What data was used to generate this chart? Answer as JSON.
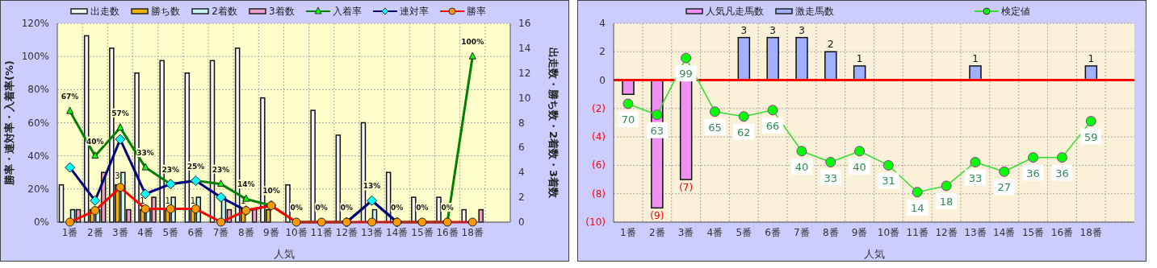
{
  "chart_data": [
    {
      "type": "bar",
      "xlabel": "人気",
      "ylabel": "勝率・連対率・入着率(%)",
      "y2label": "出走数・勝ち数・2着数・3着数",
      "categories": [
        "1番",
        "2番",
        "3番",
        "4番",
        "5番",
        "6番",
        "7番",
        "8番",
        "9番",
        "10番",
        "11番",
        "12番",
        "13番",
        "14番",
        "15番",
        "16番",
        "18番",
        null
      ],
      "ylim": [
        0,
        120
      ],
      "yticks": [
        {
          "value": 0,
          "label": "0%"
        },
        {
          "value": 20,
          "label": "20%"
        },
        {
          "value": 40,
          "label": "40%"
        },
        {
          "value": 60,
          "label": "60%"
        },
        {
          "value": 80,
          "label": "80%"
        },
        {
          "value": 100,
          "label": "100%"
        },
        {
          "value": 120,
          "label": "120%"
        }
      ],
      "y2lim": [
        0,
        16
      ],
      "y2ticks": [
        0,
        2,
        4,
        6,
        8,
        10,
        12,
        14,
        16
      ],
      "grid": true,
      "legend": "top",
      "series": [
        {
          "name": "出走数",
          "axis": "y2",
          "color": "#f4f4f4",
          "values": [
            3,
            15,
            14,
            12,
            13,
            12,
            13,
            14,
            10,
            3,
            9,
            7,
            8,
            4,
            2,
            2,
            1,
            null
          ]
        },
        {
          "name": "勝ち数",
          "axis": "y2",
          "color": "#f0b400",
          "values": [
            0,
            1,
            3,
            1,
            1,
            1,
            0,
            1,
            1,
            0,
            0,
            0,
            0,
            0,
            0,
            0,
            0,
            null
          ],
          "value_labels": [
            null,
            null,
            "3",
            "1",
            "1",
            "1",
            null,
            "1",
            null,
            null,
            null,
            null,
            null,
            null,
            null,
            null,
            null,
            null
          ]
        },
        {
          "name": "2着数",
          "axis": "y2",
          "color": "#c8f4f4",
          "values": [
            1,
            1,
            4,
            1,
            2,
            2,
            2,
            0,
            0,
            0,
            0,
            0,
            1,
            0,
            0,
            0,
            0,
            null
          ]
        },
        {
          "name": "3着数",
          "axis": "y2",
          "color": "#f0a0c8",
          "values": [
            1,
            4,
            1,
            2,
            0,
            0,
            1,
            1,
            0,
            0,
            0,
            0,
            0,
            0,
            0,
            0,
            1,
            null
          ]
        },
        {
          "name": "入着率",
          "type": "line",
          "marker": "triangle",
          "color": "#008000",
          "values": [
            67,
            40,
            57,
            33,
            23,
            25,
            23,
            14,
            10,
            0,
            0,
            0,
            13,
            0,
            0,
            0,
            100,
            null
          ],
          "value_labels": [
            "67%",
            "40%",
            "57%",
            "33%",
            "23%",
            "25%",
            "23%",
            "14%",
            "10%",
            "0%",
            "0%",
            "0%",
            "13%",
            "0%",
            "0%",
            "0%",
            "100%",
            null
          ]
        },
        {
          "name": "連対率",
          "type": "line",
          "marker": "diamond",
          "color": "#000080",
          "values": [
            33,
            13,
            50,
            17,
            23,
            25,
            15,
            7,
            10,
            null,
            null,
            0,
            13,
            0,
            null,
            null,
            null,
            null
          ]
        },
        {
          "name": "勝率",
          "type": "line",
          "marker": "circle",
          "color": "#ff0000",
          "values": [
            0,
            7,
            21,
            8,
            8,
            8,
            0,
            7,
            10,
            0,
            0,
            0,
            0,
            0,
            0,
            0,
            0,
            null
          ]
        }
      ]
    },
    {
      "type": "bar",
      "xlabel": "人気",
      "categories": [
        "1番",
        "2番",
        "3番",
        "4番",
        "5番",
        "6番",
        "7番",
        "8番",
        "9番",
        "10番",
        "11番",
        "12番",
        "13番",
        "14番",
        "15番",
        "16番",
        "18番",
        null
      ],
      "ylim": [
        -10,
        4
      ],
      "yticks": [
        4,
        2,
        0,
        {
          "value": -2,
          "label": "(2)"
        },
        {
          "value": -4,
          "label": "(4)"
        },
        {
          "value": -6,
          "label": "(6)"
        },
        {
          "value": -8,
          "label": "(8)"
        },
        {
          "value": -10,
          "label": "(10)"
        }
      ],
      "y2lim": [
        -5,
        121
      ],
      "grid": true,
      "legend": "top",
      "ref_lines": [
        {
          "axis": "y",
          "value": 0,
          "color": "#ff0000"
        }
      ],
      "series": [
        {
          "name": "人気凡走馬数",
          "color": "#f090f0",
          "values": [
            -1,
            -9,
            -7,
            null,
            null,
            null,
            null,
            null,
            null,
            null,
            null,
            null,
            null,
            null,
            null,
            null,
            null,
            null
          ],
          "value_labels": [
            null,
            "(9)",
            "(7)",
            null,
            null,
            null,
            null,
            null,
            null,
            null,
            null,
            null,
            null,
            null,
            null,
            null,
            null,
            null
          ]
        },
        {
          "name": "激走馬数",
          "color": "#a0b0ff",
          "values": [
            null,
            null,
            null,
            null,
            3,
            3,
            3,
            2,
            1,
            null,
            null,
            null,
            1,
            null,
            null,
            null,
            1,
            null
          ],
          "value_labels": [
            null,
            null,
            null,
            null,
            "3",
            "3",
            "3",
            "2",
            "1",
            null,
            null,
            null,
            "1",
            null,
            null,
            null,
            "1",
            null
          ]
        },
        {
          "name": "検定値",
          "type": "line",
          "axis": "y2",
          "marker": "circle",
          "color": "#33dd33",
          "values": [
            70,
            63,
            99,
            65,
            62,
            66,
            40,
            33,
            40,
            31,
            14,
            18,
            33,
            27,
            36,
            36,
            59,
            null
          ],
          "value_labels": [
            "70",
            "63",
            "99",
            "65",
            "62",
            "66",
            "40",
            "33",
            "40",
            "31",
            "14",
            "18",
            "33",
            "27",
            "36",
            "36",
            "59",
            null
          ]
        }
      ]
    }
  ]
}
